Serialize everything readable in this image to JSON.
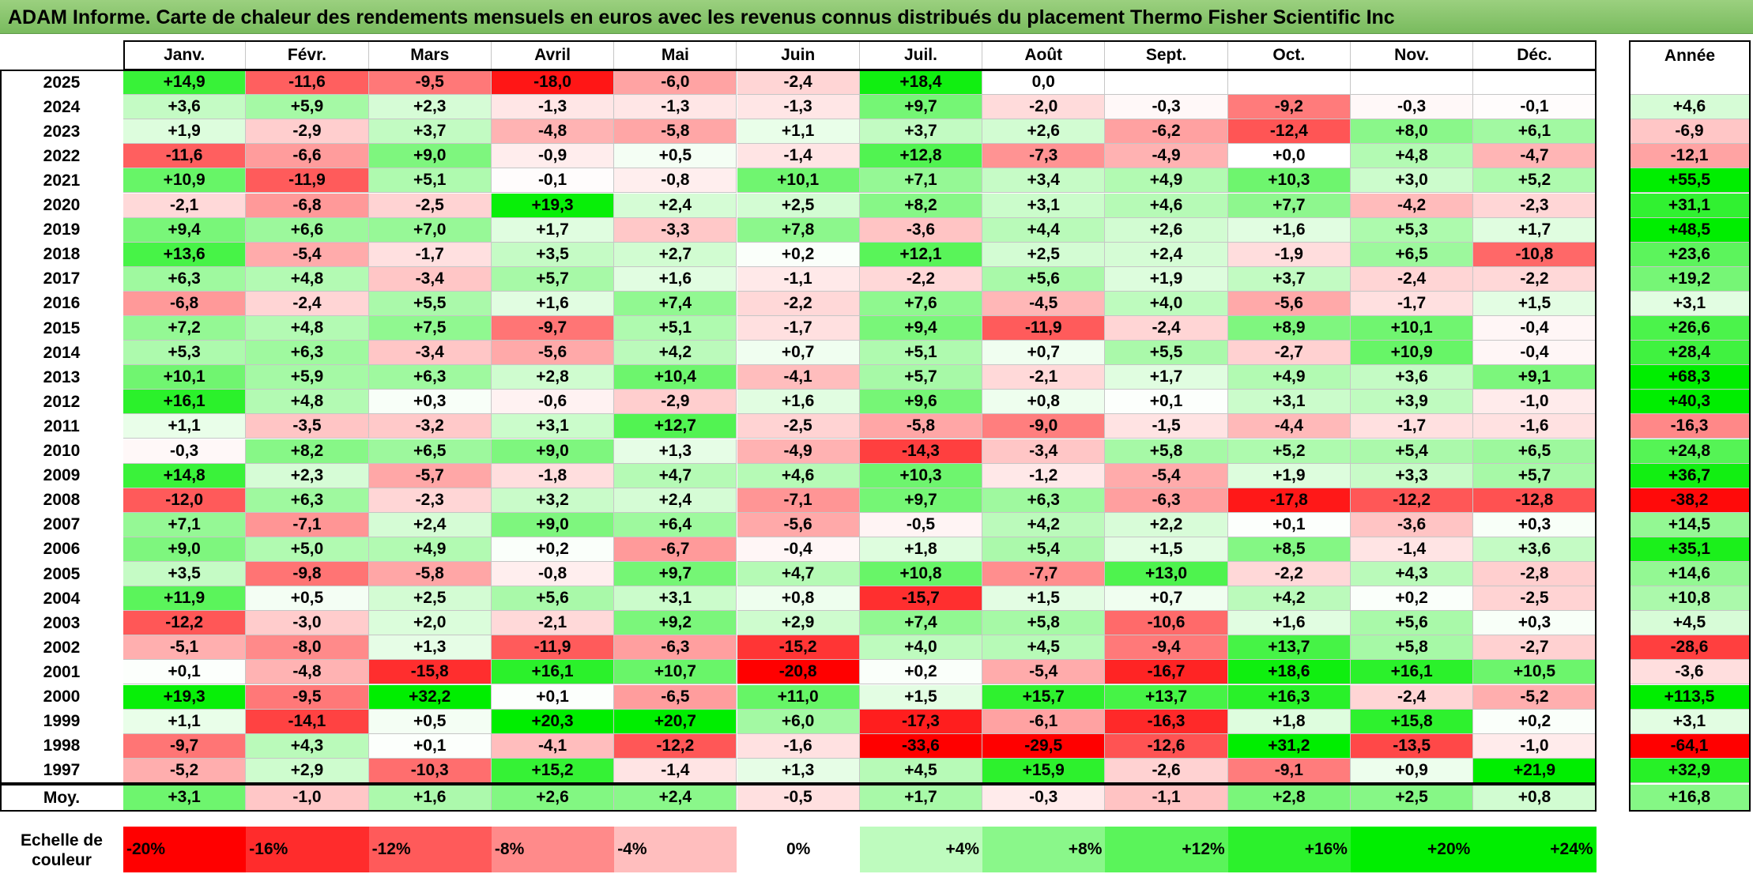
{
  "title": "ADAM Informe. Carte de chaleur des rendements mensuels en euros avec les revenus connus distribués du placement Thermo Fisher Scientific Inc",
  "chart_data": {
    "type": "heatmap",
    "title": "ADAM Informe. Carte de chaleur des rendements mensuels en euros avec les revenus connus distribués du placement Thermo Fisher Scientific Inc",
    "months": [
      "Janv.",
      "Févr.",
      "Mars",
      "Avril",
      "Mai",
      "Juin",
      "Juil.",
      "Août",
      "Sept.",
      "Oct.",
      "Nov.",
      "Déc."
    ],
    "year_col_label": "Année",
    "rows": [
      {
        "year": "2025",
        "values": [
          "+14,9",
          "-11,6",
          "-9,5",
          "-18,0",
          "-6,0",
          "-2,4",
          "+18,4",
          "0,0",
          "",
          "",
          "",
          ""
        ],
        "annual": ""
      },
      {
        "year": "2024",
        "values": [
          "+3,6",
          "+5,9",
          "+2,3",
          "-1,3",
          "-1,3",
          "-1,3",
          "+9,7",
          "-2,0",
          "-0,3",
          "-9,2",
          "-0,3",
          "-0,1"
        ],
        "annual": "+4,6"
      },
      {
        "year": "2023",
        "values": [
          "+1,9",
          "-2,9",
          "+3,7",
          "-4,8",
          "-5,8",
          "+1,1",
          "+3,7",
          "+2,6",
          "-6,2",
          "-12,4",
          "+8,0",
          "+6,1"
        ],
        "annual": "-6,9"
      },
      {
        "year": "2022",
        "values": [
          "-11,6",
          "-6,6",
          "+9,0",
          "-0,9",
          "+0,5",
          "-1,4",
          "+12,8",
          "-7,3",
          "-4,9",
          "+0,0",
          "+4,8",
          "-4,7"
        ],
        "annual": "-12,1"
      },
      {
        "year": "2021",
        "values": [
          "+10,9",
          "-11,9",
          "+5,1",
          "-0,1",
          "-0,8",
          "+10,1",
          "+7,1",
          "+3,4",
          "+4,9",
          "+10,3",
          "+3,0",
          "+5,2"
        ],
        "annual": "+55,5"
      },
      {
        "year": "2020",
        "values": [
          "-2,1",
          "-6,8",
          "-2,5",
          "+19,3",
          "+2,4",
          "+2,5",
          "+8,2",
          "+3,1",
          "+4,6",
          "+7,7",
          "-4,2",
          "-2,3"
        ],
        "annual": "+31,1"
      },
      {
        "year": "2019",
        "values": [
          "+9,4",
          "+6,6",
          "+7,0",
          "+1,7",
          "-3,3",
          "+7,8",
          "-3,6",
          "+4,4",
          "+2,6",
          "+1,6",
          "+5,3",
          "+1,7"
        ],
        "annual": "+48,5"
      },
      {
        "year": "2018",
        "values": [
          "+13,6",
          "-5,4",
          "-1,7",
          "+3,5",
          "+2,7",
          "+0,2",
          "+12,1",
          "+2,5",
          "+2,4",
          "-1,9",
          "+6,5",
          "-10,8"
        ],
        "annual": "+23,6"
      },
      {
        "year": "2017",
        "values": [
          "+6,3",
          "+4,8",
          "-3,4",
          "+5,7",
          "+1,6",
          "-1,1",
          "-2,2",
          "+5,6",
          "+1,9",
          "+3,7",
          "-2,4",
          "-2,2"
        ],
        "annual": "+19,2"
      },
      {
        "year": "2016",
        "values": [
          "-6,8",
          "-2,4",
          "+5,5",
          "+1,6",
          "+7,4",
          "-2,2",
          "+7,6",
          "-4,5",
          "+4,0",
          "-5,6",
          "-1,7",
          "+1,5"
        ],
        "annual": "+3,1"
      },
      {
        "year": "2015",
        "values": [
          "+7,2",
          "+4,8",
          "+7,5",
          "-9,7",
          "+5,1",
          "-1,7",
          "+9,4",
          "-11,9",
          "-2,4",
          "+8,9",
          "+10,1",
          "-0,4"
        ],
        "annual": "+26,6"
      },
      {
        "year": "2014",
        "values": [
          "+5,3",
          "+6,3",
          "-3,4",
          "-5,6",
          "+4,2",
          "+0,7",
          "+5,1",
          "+0,7",
          "+5,5",
          "-2,7",
          "+10,9",
          "-0,4"
        ],
        "annual": "+28,4"
      },
      {
        "year": "2013",
        "values": [
          "+10,1",
          "+5,9",
          "+6,3",
          "+2,8",
          "+10,4",
          "-4,1",
          "+5,7",
          "-2,1",
          "+1,7",
          "+4,9",
          "+3,6",
          "+9,1"
        ],
        "annual": "+68,3"
      },
      {
        "year": "2012",
        "values": [
          "+16,1",
          "+4,8",
          "+0,3",
          "-0,6",
          "-2,9",
          "+1,6",
          "+9,6",
          "+0,8",
          "+0,1",
          "+3,1",
          "+3,9",
          "-1,0"
        ],
        "annual": "+40,3"
      },
      {
        "year": "2011",
        "values": [
          "+1,1",
          "-3,5",
          "-3,2",
          "+3,1",
          "+12,7",
          "-2,5",
          "-5,8",
          "-9,0",
          "-1,5",
          "-4,4",
          "-1,7",
          "-1,6"
        ],
        "annual": "-16,3"
      },
      {
        "year": "2010",
        "values": [
          "-0,3",
          "+8,2",
          "+6,5",
          "+9,0",
          "+1,3",
          "-4,9",
          "-14,3",
          "-3,4",
          "+5,8",
          "+5,2",
          "+5,4",
          "+6,5"
        ],
        "annual": "+24,8"
      },
      {
        "year": "2009",
        "values": [
          "+14,8",
          "+2,3",
          "-5,7",
          "-1,8",
          "+4,7",
          "+4,6",
          "+10,3",
          "-1,2",
          "-5,4",
          "+1,9",
          "+3,3",
          "+5,7"
        ],
        "annual": "+36,7"
      },
      {
        "year": "2008",
        "values": [
          "-12,0",
          "+6,3",
          "-2,3",
          "+3,2",
          "+2,4",
          "-7,1",
          "+9,7",
          "+6,3",
          "-6,3",
          "-17,8",
          "-12,2",
          "-12,8"
        ],
        "annual": "-38,2"
      },
      {
        "year": "2007",
        "values": [
          "+7,1",
          "-7,1",
          "+2,4",
          "+9,0",
          "+6,4",
          "-5,6",
          "-0,5",
          "+4,2",
          "+2,2",
          "+0,1",
          "-3,6",
          "+0,3"
        ],
        "annual": "+14,5"
      },
      {
        "year": "2006",
        "values": [
          "+9,0",
          "+5,0",
          "+4,9",
          "+0,2",
          "-6,7",
          "-0,4",
          "+1,8",
          "+5,4",
          "+1,5",
          "+8,5",
          "-1,4",
          "+3,6"
        ],
        "annual": "+35,1"
      },
      {
        "year": "2005",
        "values": [
          "+3,5",
          "-9,8",
          "-5,8",
          "-0,8",
          "+9,7",
          "+4,7",
          "+10,8",
          "-7,7",
          "+13,0",
          "-2,2",
          "+4,3",
          "-2,8"
        ],
        "annual": "+14,6"
      },
      {
        "year": "2004",
        "values": [
          "+11,9",
          "+0,5",
          "+2,5",
          "+5,6",
          "+3,1",
          "+0,8",
          "-15,7",
          "+1,5",
          "+0,7",
          "+4,2",
          "+0,2",
          "-2,5"
        ],
        "annual": "+10,8"
      },
      {
        "year": "2003",
        "values": [
          "-12,2",
          "-3,0",
          "+2,0",
          "-2,1",
          "+9,2",
          "+2,9",
          "+7,4",
          "+5,8",
          "-10,6",
          "+1,6",
          "+5,6",
          "+0,3"
        ],
        "annual": "+4,5"
      },
      {
        "year": "2002",
        "values": [
          "-5,1",
          "-8,0",
          "+1,3",
          "-11,9",
          "-6,3",
          "-15,2",
          "+4,0",
          "+4,5",
          "-9,4",
          "+13,7",
          "+5,8",
          "-2,7"
        ],
        "annual": "-28,6"
      },
      {
        "year": "2001",
        "values": [
          "+0,1",
          "-4,8",
          "-15,8",
          "+16,1",
          "+10,7",
          "-20,8",
          "+0,2",
          "-5,4",
          "-16,7",
          "+18,6",
          "+16,1",
          "+10,5"
        ],
        "annual": "-3,6"
      },
      {
        "year": "2000",
        "values": [
          "+19,3",
          "-9,5",
          "+32,2",
          "+0,1",
          "-6,5",
          "+11,0",
          "+1,5",
          "+15,7",
          "+13,7",
          "+16,3",
          "-2,4",
          "-5,2"
        ],
        "annual": "+113,5"
      },
      {
        "year": "1999",
        "values": [
          "+1,1",
          "-14,1",
          "+0,5",
          "+20,3",
          "+20,7",
          "+6,0",
          "-17,3",
          "-6,1",
          "-16,3",
          "+1,8",
          "+15,8",
          "+0,2"
        ],
        "annual": "+3,1"
      },
      {
        "year": "1998",
        "values": [
          "-9,7",
          "+4,3",
          "+0,1",
          "-4,1",
          "-12,2",
          "-1,6",
          "-33,6",
          "-29,5",
          "-12,6",
          "+31,2",
          "-13,5",
          "-1,0"
        ],
        "annual": "-64,1"
      },
      {
        "year": "1997",
        "values": [
          "-5,2",
          "+2,9",
          "-10,3",
          "+15,2",
          "-1,4",
          "+1,3",
          "+4,5",
          "+15,9",
          "-2,6",
          "-9,1",
          "+0,9",
          "+21,9"
        ],
        "annual": "+32,9"
      }
    ],
    "average": {
      "label": "Moy.",
      "values": [
        "+3,1",
        "-1,0",
        "+1,6",
        "+2,6",
        "+2,4",
        "-0,5",
        "+1,7",
        "-0,3",
        "-1,1",
        "+2,8",
        "+2,5",
        "+0,8"
      ],
      "annual": "+16,8"
    },
    "scale": {
      "label_line1": "Echelle de",
      "label_line2": "couleur",
      "stops": [
        "-20%",
        "-16%",
        "-12%",
        "-8%",
        "-4%",
        "0%",
        "+4%",
        "+8%",
        "+12%",
        "+16%",
        "+20%",
        "+24%"
      ],
      "stop_values": [
        -20,
        -16,
        -12,
        -8,
        -4,
        0,
        4,
        8,
        12,
        16,
        20,
        24
      ]
    },
    "colors": {
      "negative_max": "#ff0000",
      "neutral": "#ffffff",
      "positive_max": "#00ee00"
    }
  }
}
